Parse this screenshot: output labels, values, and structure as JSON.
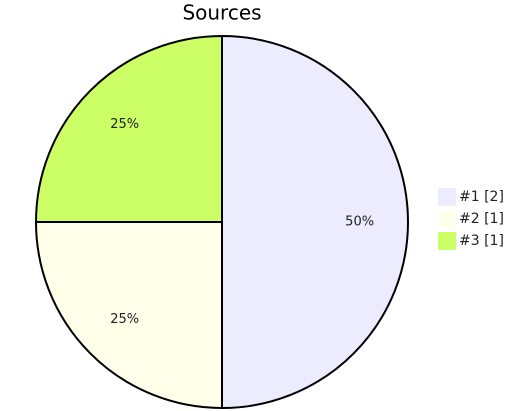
{
  "chart_data": {
    "type": "pie",
    "title": "Sources",
    "categories": [
      "#1 [2]",
      "#2 [1]",
      "#3 [1]"
    ],
    "values": [
      50,
      25,
      25
    ],
    "value_labels": [
      "50%",
      "25%",
      "25%"
    ],
    "colors": [
      "#ececfe",
      "#ffffea",
      "#ccff66"
    ],
    "legend": "right"
  }
}
